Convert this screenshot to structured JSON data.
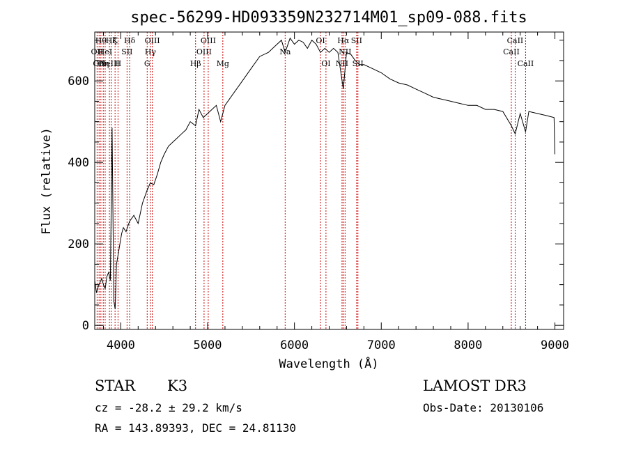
{
  "chart_data": {
    "type": "line",
    "title": "spec-56299-HD093359N232714M01_sp09-088.fits",
    "xlabel": "Wavelength (Å)",
    "ylabel": "Flux (relative)",
    "xlim": [
      3700,
      9100
    ],
    "ylim": [
      -10,
      720
    ],
    "x_ticks": [
      4000,
      5000,
      6000,
      7000,
      8000,
      9000
    ],
    "y_ticks": [
      0,
      200,
      400,
      600
    ],
    "grid": false,
    "line_color": "#000000",
    "marker_color": "#cc0000",
    "series": [
      {
        "x": [
          3700,
          3720,
          3740,
          3760,
          3780,
          3800,
          3820,
          3840,
          3860,
          3880,
          3900,
          3920,
          3935,
          3950,
          3970,
          3990,
          4010,
          4030,
          4060,
          4100,
          4150,
          4200,
          4250,
          4300,
          4340,
          4380,
          4420,
          4460,
          4500,
          4550,
          4600,
          4650,
          4700,
          4750,
          4800,
          4861,
          4900,
          4950,
          5000,
          5050,
          5100,
          5150,
          5175,
          5200,
          5300,
          5400,
          5500,
          5600,
          5700,
          5800,
          5850,
          5893,
          5950,
          6000,
          6050,
          6100,
          6150,
          6200,
          6250,
          6300,
          6350,
          6400,
          6450,
          6500,
          6563,
          6600,
          6650,
          6700,
          6750,
          6800,
          6900,
          7000,
          7100,
          7200,
          7300,
          7400,
          7500,
          7600,
          7700,
          7800,
          7900,
          8000,
          8100,
          8200,
          8300,
          8400,
          8498,
          8542,
          8600,
          8662,
          8700,
          8800,
          8900,
          8990,
          9000
        ],
        "y": [
          110,
          80,
          95,
          105,
          115,
          100,
          90,
          120,
          130,
          110,
          485,
          60,
          40,
          150,
          175,
          200,
          225,
          240,
          230,
          255,
          270,
          250,
          300,
          330,
          350,
          345,
          370,
          400,
          420,
          440,
          450,
          460,
          470,
          480,
          500,
          490,
          530,
          510,
          520,
          530,
          540,
          500,
          520,
          540,
          570,
          600,
          630,
          660,
          670,
          690,
          700,
          670,
          705,
          690,
          700,
          695,
          680,
          700,
          690,
          670,
          680,
          670,
          680,
          670,
          580,
          670,
          665,
          650,
          640,
          640,
          630,
          620,
          605,
          595,
          590,
          580,
          570,
          560,
          555,
          550,
          545,
          540,
          540,
          530,
          530,
          525,
          490,
          470,
          520,
          475,
          525,
          520,
          515,
          510,
          420
        ]
      }
    ],
    "line_markers": [
      {
        "x": 3727,
        "label": "OII",
        "row": 2
      },
      {
        "x": 3750,
        "label": "OII",
        "row": 3
      },
      {
        "x": 3771,
        "label": "Hθ",
        "row": 1
      },
      {
        "x": 3798,
        "label": "Hη",
        "row": 3
      },
      {
        "x": 3820,
        "label": "HeI",
        "row": 2
      },
      {
        "x": 3869,
        "label": "NeIII",
        "row": 3
      },
      {
        "x": 3889,
        "label": "Hζ",
        "row": 1
      },
      {
        "x": 3934,
        "label": "K",
        "row": 1
      },
      {
        "x": 3968,
        "label": "H",
        "row": 3
      },
      {
        "x": 4072,
        "label": "SII",
        "row": 2
      },
      {
        "x": 4102,
        "label": "Hδ",
        "row": 1
      },
      {
        "x": 4304,
        "label": "G",
        "row": 3
      },
      {
        "x": 4341,
        "label": "Hγ",
        "row": 2
      },
      {
        "x": 4363,
        "label": "OIII",
        "row": 1
      },
      {
        "x": 4861,
        "label": "Hβ",
        "row": 3
      },
      {
        "x": 4959,
        "label": "OIII",
        "row": 2
      },
      {
        "x": 5007,
        "label": "OIII",
        "row": 1
      },
      {
        "x": 5175,
        "label": "Mg",
        "row": 3
      },
      {
        "x": 5893,
        "label": "Na",
        "row": 2
      },
      {
        "x": 6300,
        "label": "OI",
        "row": 1
      },
      {
        "x": 6363,
        "label": "OI",
        "row": 3
      },
      {
        "x": 6548,
        "label": "NII",
        "row": 3
      },
      {
        "x": 6563,
        "label": "Hα",
        "row": 1
      },
      {
        "x": 6583,
        "label": "NII",
        "row": 2
      },
      {
        "x": 6716,
        "label": "SII",
        "row": 1
      },
      {
        "x": 6731,
        "label": "SII",
        "row": 3
      },
      {
        "x": 8498,
        "label": "CaII",
        "row": 2
      },
      {
        "x": 8542,
        "label": "CaII",
        "row": 1
      },
      {
        "x": 8662,
        "label": "CaII",
        "row": 3
      }
    ]
  },
  "info": {
    "object_class": "STAR",
    "subclass": "K3",
    "survey": "LAMOST DR3",
    "cz": "cz = -28.2 ± 29.2 km/s",
    "obs_date": "Obs-Date: 20130106",
    "coords": "RA = 143.89393, DEC =  24.81130"
  }
}
